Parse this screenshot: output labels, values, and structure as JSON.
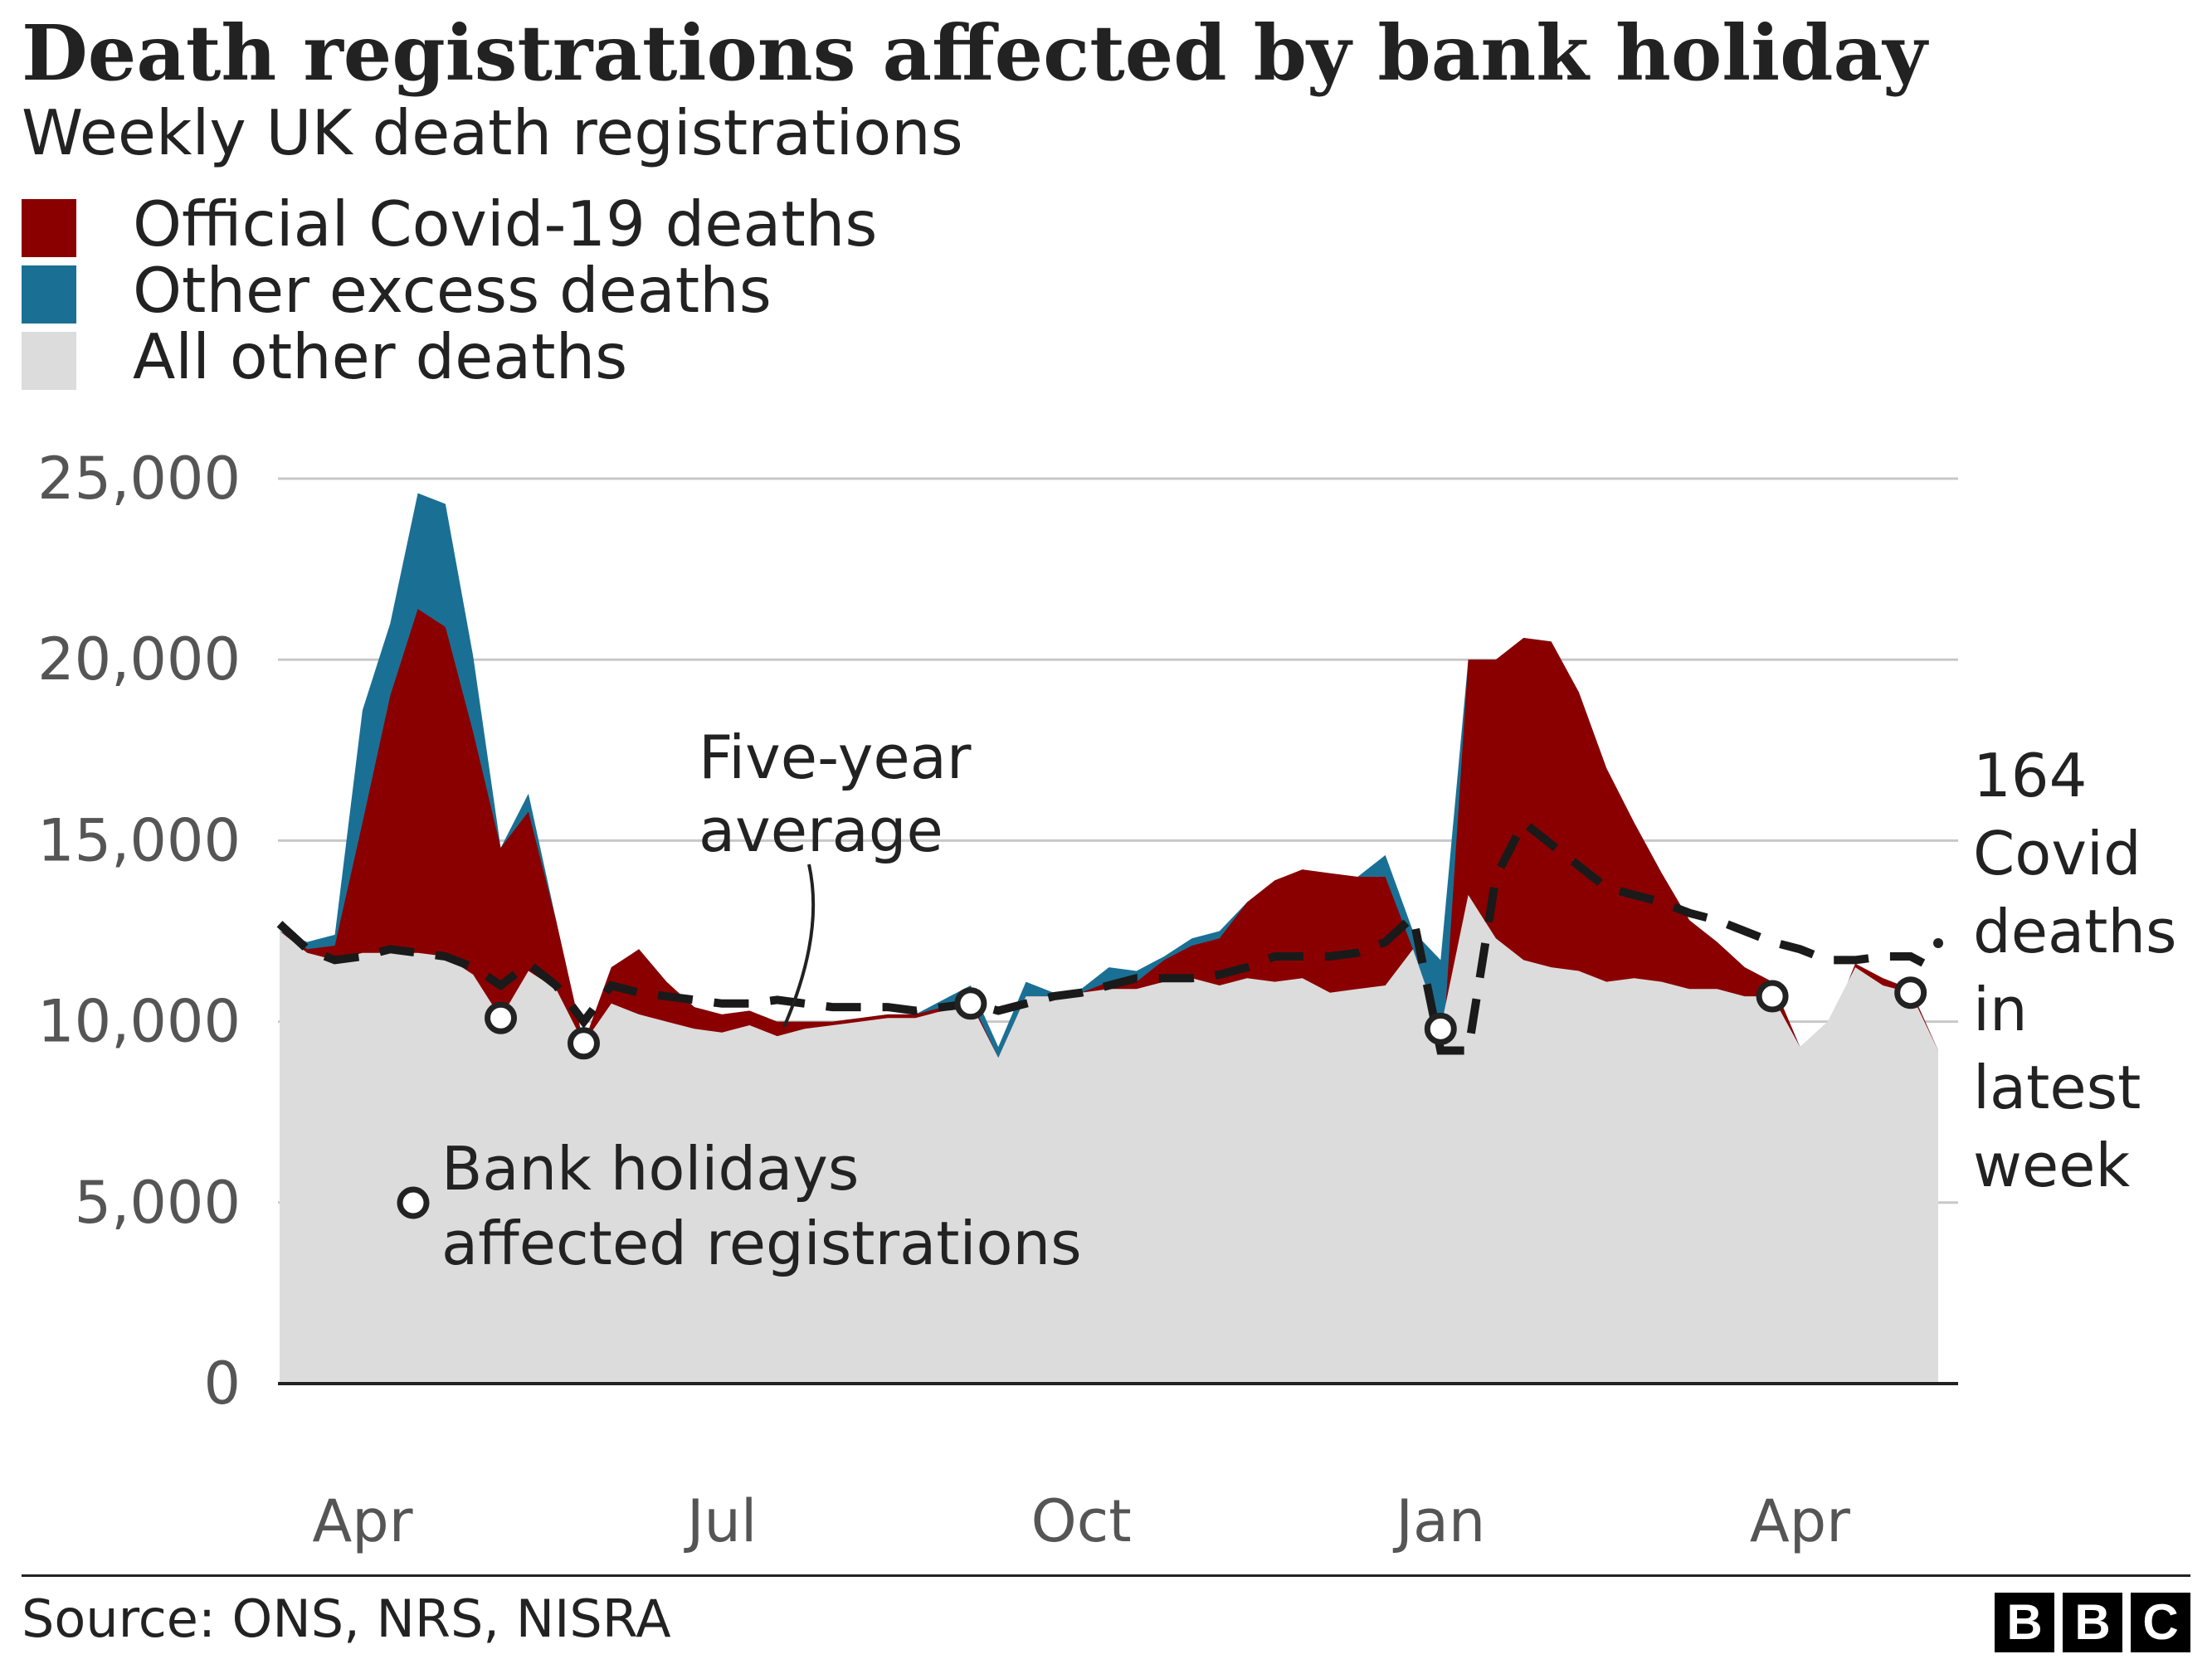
{
  "title": "Death registrations affected by bank holiday",
  "subtitle": "Weekly UK death registrations",
  "legend": [
    {
      "label": "Official Covid-19 deaths",
      "color": "#8a0000"
    },
    {
      "label": "Other excess deaths",
      "color": "#1a7094"
    },
    {
      "label": "All other deaths",
      "color": "#dcdcdc"
    }
  ],
  "annotations": {
    "average_line1": "Five-year",
    "average_line2": "average",
    "bank_holiday_line1": "Bank holidays",
    "bank_holiday_line2": "affected registrations",
    "latest": [
      "164",
      "Covid",
      "deaths",
      "in",
      "latest",
      "week"
    ]
  },
  "source": "Source: ONS, NRS, NISRA",
  "logo": [
    "B",
    "B",
    "C"
  ],
  "chart_data": {
    "type": "area",
    "title": "Death registrations affected by bank holiday",
    "subtitle": "Weekly UK death registrations",
    "x_ticks": [
      "Apr",
      "Jul",
      "Oct",
      "Jan",
      "Apr"
    ],
    "x_tick_weeks": [
      3,
      16,
      29,
      42,
      55
    ],
    "y_ticks": [
      "0",
      "5,000",
      "10,000",
      "15,000",
      "20,000",
      "25,000"
    ],
    "y_tick_values": [
      0,
      5000,
      10000,
      15000,
      20000,
      25000
    ],
    "ylim": [
      0,
      25000
    ],
    "week_count": 61,
    "colors": {
      "covid": "#8a0000",
      "excess": "#1a7094",
      "other": "#dcdcdc",
      "average": "#1a1a1a"
    },
    "series": [
      {
        "name": "All other deaths",
        "values": [
          12500,
          11900,
          11700,
          11900,
          11900,
          11900,
          11800,
          11300,
          10100,
          11400,
          10900,
          9400,
          10500,
          10200,
          10000,
          9800,
          9700,
          9900,
          9600,
          9800,
          9900,
          10000,
          10100,
          10100,
          10300,
          10500,
          9000,
          10700,
          10700,
          10800,
          10900,
          10900,
          11100,
          11200,
          11000,
          11200,
          11100,
          11200,
          10800,
          10900,
          11000,
          12000,
          9800,
          13500,
          12300,
          11700,
          11500,
          11400,
          11100,
          11200,
          11100,
          10900,
          10900,
          10700,
          10700,
          9300,
          10000,
          11500,
          11000,
          10800,
          9200
        ]
      },
      {
        "name": "Official Covid-19 deaths",
        "values": [
          12500,
          12000,
          12100,
          15500,
          19000,
          21400,
          20900,
          18000,
          14800,
          15800,
          12800,
          9400,
          11500,
          12000,
          11100,
          10400,
          10200,
          10300,
          10000,
          10000,
          10000,
          10100,
          10200,
          10200,
          10400,
          10600,
          9000,
          10700,
          10700,
          10800,
          11100,
          11100,
          11700,
          12100,
          12300,
          13300,
          13900,
          14200,
          14100,
          14000,
          14000,
          12000,
          8300,
          20000,
          20000,
          20600,
          20500,
          19100,
          17000,
          15500,
          14100,
          12800,
          12200,
          11500,
          11100,
          9300,
          9700,
          11600,
          11200,
          10900,
          9200
        ]
      },
      {
        "name": "Other excess deaths",
        "values": [
          12500,
          12200,
          12400,
          18600,
          21000,
          24600,
          24300,
          20100,
          14800,
          16300,
          12800,
          9400,
          11500,
          12000,
          11100,
          10400,
          10200,
          10300,
          10000,
          10000,
          10000,
          10100,
          10200,
          10200,
          10600,
          11000,
          9300,
          11100,
          10800,
          10900,
          11500,
          11400,
          11800,
          12300,
          12500,
          13300,
          13900,
          14200,
          14100,
          14000,
          14600,
          12500,
          11700,
          20000,
          20000,
          20600,
          20500,
          19100,
          17000,
          15500,
          14100,
          12800,
          12200,
          11500,
          11100,
          9300,
          9700,
          11600,
          11200,
          10900,
          9200
        ]
      },
      {
        "name": "Five-year average",
        "values": [
          12700,
          12000,
          11700,
          11800,
          12000,
          11900,
          11800,
          11500,
          11000,
          11600,
          11000,
          10000,
          11000,
          10800,
          10700,
          10600,
          10500,
          10500,
          10600,
          10500,
          10400,
          10400,
          10400,
          10300,
          10400,
          10500,
          10300,
          10500,
          10700,
          10800,
          11000,
          11200,
          11200,
          11200,
          11300,
          11500,
          11800,
          11800,
          11800,
          11900,
          12200,
          12900,
          9200,
          9200,
          14000,
          15500,
          14900,
          14300,
          13700,
          13500,
          13300,
          13000,
          12800,
          12500,
          12200,
          12000,
          11700,
          11700,
          11800,
          11800,
          11400
        ]
      }
    ],
    "bank_holiday_weeks": [
      8,
      11,
      25,
      42,
      54,
      59
    ],
    "latest_value": 164,
    "latest_label": "164 Covid deaths in latest week"
  }
}
